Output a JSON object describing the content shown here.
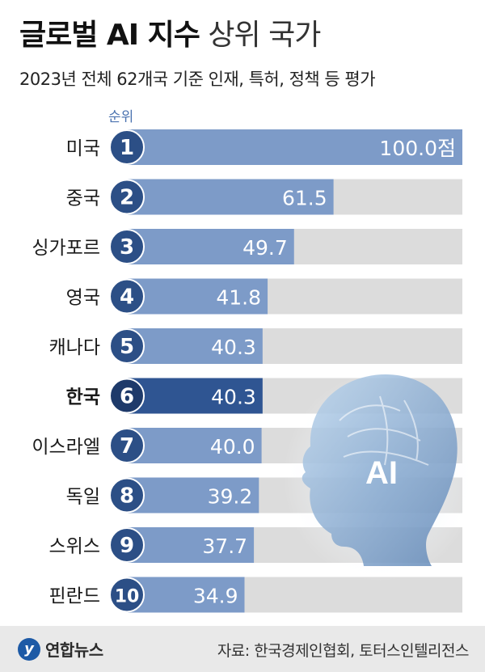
{
  "header": {
    "title_bold": "글로벌 AI 지수",
    "title_light": "상위 국가",
    "subtitle": "2023년 전체 62개국 기준 인재, 특허, 정책 등 평가",
    "rank_header": "순위"
  },
  "chart_data": {
    "type": "bar",
    "orientation": "horizontal",
    "title": "글로벌 AI 지수 상위 국가",
    "subtitle": "2023년 전체 62개국 기준 인재, 특허, 정책 등 평가",
    "categories": [
      "미국",
      "중국",
      "싱가포르",
      "영국",
      "캐나다",
      "한국",
      "이스라엘",
      "독일",
      "스위스",
      "핀란드"
    ],
    "ranks": [
      "1",
      "2",
      "3",
      "4",
      "5",
      "6",
      "7",
      "8",
      "9",
      "10"
    ],
    "values": [
      100.0,
      61.5,
      49.7,
      41.8,
      40.3,
      40.3,
      40.0,
      39.2,
      37.7,
      34.9
    ],
    "value_labels": [
      "100.0점",
      "61.5",
      "49.7",
      "41.8",
      "40.3",
      "40.3",
      "40.0",
      "39.2",
      "37.7",
      "34.9"
    ],
    "highlight": "한국",
    "xlim": [
      0,
      100
    ],
    "grid": false,
    "legend": "none"
  },
  "illustration": {
    "icon": "ai-brain-head-icon",
    "label": "AI"
  },
  "footer": {
    "logo_mark": "y",
    "logo_text": "연합뉴스",
    "source": "자료: 한국경제인협회, 토터스인텔리전스"
  },
  "colors": {
    "bar": "#7d9bc8",
    "bar_highlight": "#2f5592",
    "track": "#dcdcdc",
    "rank_circle": "#2c4f86",
    "rank_circle_highlight": "#1e3a6a",
    "footer_bg": "#e9e9e9",
    "accent": "#4b73b0"
  }
}
